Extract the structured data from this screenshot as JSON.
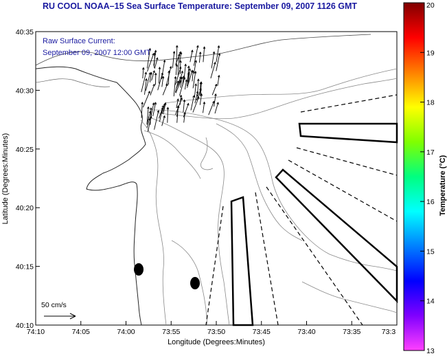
{
  "title": "RU COOL  NOAA–15  Sea Surface Temperature:  September 09, 2007 1126 GMT",
  "current_label": {
    "line1": "Raw Surface Current:",
    "line2": "September 09, 2007 12:00 GMT"
  },
  "scale_label": "50 cm/s",
  "axes": {
    "xlabel": "Longitude (Degrees:Minutes)",
    "ylabel": "Latitude (Degrees:Minutes)",
    "x_ticks": [
      "74:10",
      "74:05",
      "74:00",
      "73:55",
      "73:50",
      "73:45",
      "73:40",
      "73:35",
      "73:3"
    ],
    "y_ticks": [
      "40:35",
      "40:30",
      "40:25",
      "40:20",
      "40:15",
      "40:10"
    ]
  },
  "colorbar": {
    "label": "Temperature (°C)",
    "ticks": [
      "20",
      "19",
      "18",
      "17",
      "16",
      "15",
      "14",
      "13"
    ],
    "min": 13,
    "max": 20,
    "colors": [
      "#ff40ff",
      "#8000ff",
      "#0000ff",
      "#0080ff",
      "#00ffff",
      "#00ff80",
      "#80ff00",
      "#ffff00",
      "#ff8000",
      "#ff0000",
      "#800000"
    ]
  }
}
